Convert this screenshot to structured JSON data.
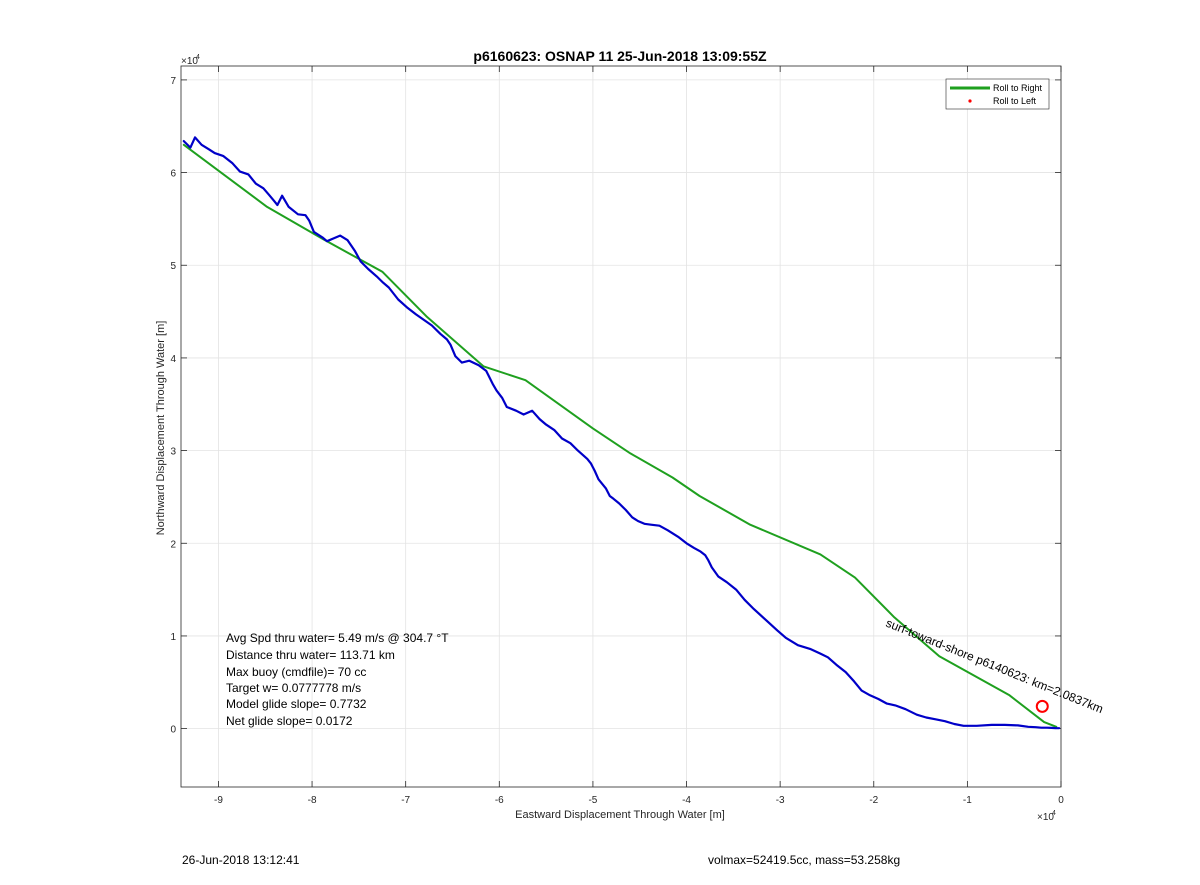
{
  "chart_data": {
    "type": "line",
    "title": "p6160623: OSNAP 11 25-Jun-2018 13:09:55Z",
    "xlabel": "Eastward Displacement Through Water [m]",
    "ylabel": "Northward Displacement Through Water [m]",
    "x_exponent_label": "×10",
    "y_exponent_label": "×10",
    "exponent_power": "4",
    "xlim": [
      -94000,
      0
    ],
    "ylim": [
      -6300,
      71500
    ],
    "x_ticks": [
      {
        "value": -90000,
        "label": "-9"
      },
      {
        "value": -80000,
        "label": "-8"
      },
      {
        "value": -70000,
        "label": "-7"
      },
      {
        "value": -60000,
        "label": "-6"
      },
      {
        "value": -50000,
        "label": "-5"
      },
      {
        "value": -40000,
        "label": "-4"
      },
      {
        "value": -30000,
        "label": "-3"
      },
      {
        "value": -20000,
        "label": "-2"
      },
      {
        "value": -10000,
        "label": "-1"
      },
      {
        "value": 0,
        "label": "0"
      }
    ],
    "y_ticks": [
      {
        "value": 0,
        "label": "0"
      },
      {
        "value": 10000,
        "label": "1"
      },
      {
        "value": 20000,
        "label": "2"
      },
      {
        "value": 30000,
        "label": "3"
      },
      {
        "value": 40000,
        "label": "4"
      },
      {
        "value": 50000,
        "label": "5"
      },
      {
        "value": 60000,
        "label": "6"
      },
      {
        "value": 70000,
        "label": "7"
      }
    ],
    "grid": true,
    "legend_position": "top-right",
    "series": [
      {
        "name": "Roll to Right",
        "color": "#1fa01f",
        "x": [
          -93700,
          -84800,
          -78800,
          -72500,
          -67800,
          -61700,
          -57200,
          -50000,
          -46000,
          -41500,
          -38600,
          -33200,
          -25700,
          -22000,
          -17800,
          -13000,
          -5500,
          -1800,
          -500
        ],
        "y": [
          63000,
          56300,
          52800,
          49300,
          44500,
          39100,
          37600,
          32400,
          29700,
          27100,
          25100,
          22000,
          18800,
          16300,
          12000,
          7800,
          3600,
          700,
          200
        ]
      },
      {
        "name": "Roll to Left",
        "color": "#ff0000",
        "x": [],
        "y": []
      },
      {
        "name": "",
        "color": "#0000c8",
        "x": [
          -93700,
          -93000,
          -92500,
          -91800,
          -91000,
          -90400,
          -89500,
          -88500,
          -87700,
          -86800,
          -86000,
          -85200,
          -84600,
          -84100,
          -83700,
          -83200,
          -82500,
          -81500,
          -80700,
          -80300,
          -79800,
          -78900,
          -78400,
          -77700,
          -77000,
          -76200,
          -75400,
          -74800,
          -74000,
          -73100,
          -72500,
          -71800,
          -70800,
          -69800,
          -68900,
          -67900,
          -67200,
          -66300,
          -65600,
          -65200,
          -64700,
          -64000,
          -63200,
          -62200,
          -61400,
          -61000,
          -60700,
          -60300,
          -59700,
          -59200,
          -58200,
          -57400,
          -56500,
          -55700,
          -55000,
          -54100,
          -53300,
          -52400,
          -51600,
          -50600,
          -50200,
          -49800,
          -49400,
          -48600,
          -48200,
          -47800,
          -47200,
          -46500,
          -45800,
          -45200,
          -44500,
          -43800,
          -42900,
          -42000,
          -40900,
          -40000,
          -39200,
          -38500,
          -38000,
          -37700,
          -37300,
          -36600,
          -35700,
          -34700,
          -33800,
          -32800,
          -31500,
          -30300,
          -29400,
          -28100,
          -26800,
          -25700,
          -24900,
          -24000,
          -23000,
          -22100,
          -21300,
          -20400,
          -19500,
          -18600,
          -17700,
          -16600,
          -15400,
          -14400,
          -13400,
          -12400,
          -11400,
          -10400,
          -9000,
          -7400,
          -6000,
          -4600,
          -3500,
          -2700,
          -2100,
          -1500,
          -1000,
          -600,
          -200
        ],
        "y": [
          63400,
          62700,
          63800,
          63000,
          62500,
          62100,
          61800,
          61000,
          60100,
          59800,
          58800,
          58300,
          57600,
          57000,
          56500,
          57500,
          56300,
          55500,
          55400,
          54800,
          53600,
          53000,
          52600,
          52900,
          53200,
          52700,
          51500,
          50400,
          49600,
          48800,
          48200,
          47600,
          46300,
          45400,
          44700,
          44000,
          43500,
          42600,
          42000,
          41400,
          40200,
          39500,
          39700,
          39200,
          38600,
          37800,
          37200,
          36500,
          35700,
          34700,
          34300,
          33900,
          34300,
          33400,
          32800,
          32200,
          31300,
          30800,
          30000,
          29100,
          28600,
          27800,
          26900,
          25900,
          25100,
          24800,
          24300,
          23600,
          22800,
          22400,
          22100,
          22000,
          21900,
          21400,
          20700,
          20000,
          19500,
          19100,
          18700,
          18200,
          17400,
          16400,
          15800,
          15000,
          13900,
          12900,
          11700,
          10600,
          9800,
          9000,
          8600,
          8100,
          7700,
          6900,
          6100,
          5100,
          4100,
          3600,
          3200,
          2700,
          2500,
          2100,
          1500,
          1200,
          1000,
          800,
          500,
          300,
          300,
          400,
          400,
          350,
          200,
          150,
          100,
          100,
          80,
          60,
          40
        ]
      }
    ],
    "annotations": {
      "rotated_text": "surf-toward-shore p6140623: km=2.0837km",
      "stats": [
        "Avg Spd thru water=  5.49 m/s @ 304.7 °T",
        "Distance thru water= 113.71 km",
        "Max buoy (cmdfile)= 70 cc",
        "Target w= 0.0777778 m/s",
        "Model glide slope= 0.7732",
        "Net glide slope= 0.0172"
      ]
    },
    "end_marker": {
      "x": -2000,
      "y": 2400,
      "color": "#ff0000"
    }
  },
  "footer": {
    "timestamp": "26-Jun-2018 13:12:41",
    "volmax": "volmax=52419.5cc, mass=53.258kg"
  }
}
